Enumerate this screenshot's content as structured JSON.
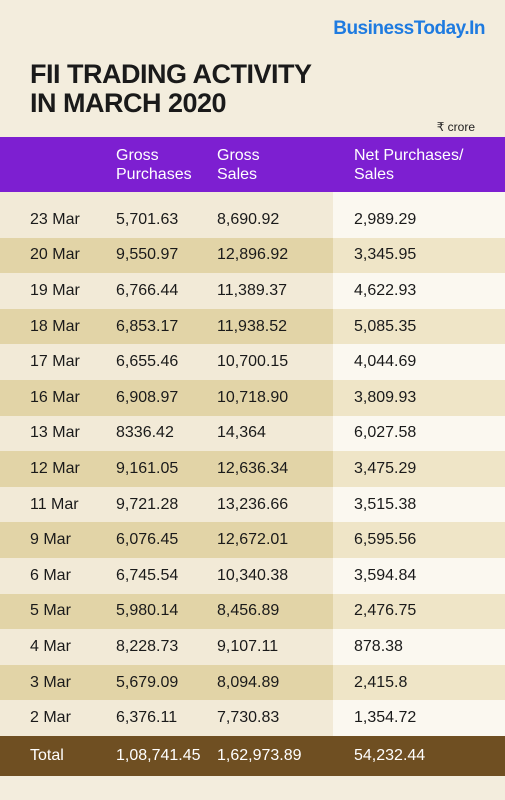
{
  "brand": "BusinessToday.In",
  "title": [
    "FII TRADING ACTIVITY",
    "IN MARCH 2020"
  ],
  "unit": "₹ crore",
  "headers": {
    "date": "",
    "gross_purchases": [
      "Gross",
      "Purchases"
    ],
    "gross_sales": [
      "Gross",
      "Sales"
    ],
    "net": [
      "Net Purchases/",
      "Sales"
    ]
  },
  "rows": [
    {
      "date": "23 Mar",
      "gp": "5,701.63",
      "gs": "8,690.92",
      "net": "2,989.29"
    },
    {
      "date": "20 Mar",
      "gp": "9,550.97",
      "gs": "12,896.92",
      "net": "3,345.95"
    },
    {
      "date": "19 Mar",
      "gp": "6,766.44",
      "gs": "11,389.37",
      "net": "4,622.93"
    },
    {
      "date": "18 Mar",
      "gp": "6,853.17",
      "gs": "11,938.52",
      "net": "5,085.35"
    },
    {
      "date": "17 Mar",
      "gp": "6,655.46",
      "gs": "10,700.15",
      "net": "4,044.69"
    },
    {
      "date": "16 Mar",
      "gp": "6,908.97",
      "gs": "10,718.90",
      "net": "3,809.93"
    },
    {
      "date": "13 Mar",
      "gp": "8336.42",
      "gs": "14,364",
      "net": "6,027.58"
    },
    {
      "date": "12 Mar",
      "gp": "9,161.05",
      "gs": "12,636.34",
      "net": "3,475.29"
    },
    {
      "date": "11 Mar",
      "gp": "9,721.28",
      "gs": "13,236.66",
      "net": "3,515.38"
    },
    {
      "date": "9 Mar",
      "gp": "6,076.45",
      "gs": "12,672.01",
      "net": "6,595.56"
    },
    {
      "date": "6 Mar",
      "gp": "6,745.54",
      "gs": "10,340.38",
      "net": "3,594.84"
    },
    {
      "date": "5 Mar",
      "gp": "5,980.14",
      "gs": "8,456.89",
      "net": "2,476.75"
    },
    {
      "date": "4 Mar",
      "gp": "8,228.73",
      "gs": "9,107.11",
      "net": "878.38"
    },
    {
      "date": "3 Mar",
      "gp": "5,679.09",
      "gs": "8,094.89",
      "net": "2,415.8"
    },
    {
      "date": "2 Mar",
      "gp": "6,376.11",
      "gs": "7,730.83",
      "net": "1,354.72"
    }
  ],
  "total": {
    "label": "Total",
    "gp": "1,08,741.45",
    "gs": "1,62,973.89",
    "net": "54,232.44"
  },
  "colors": {
    "header_bg": "#7d1fd1",
    "total_bg": "#6f4f22",
    "brand": "#1e7be0",
    "row_light": "#f2ead7",
    "row_dark": "#e2d4a7"
  }
}
